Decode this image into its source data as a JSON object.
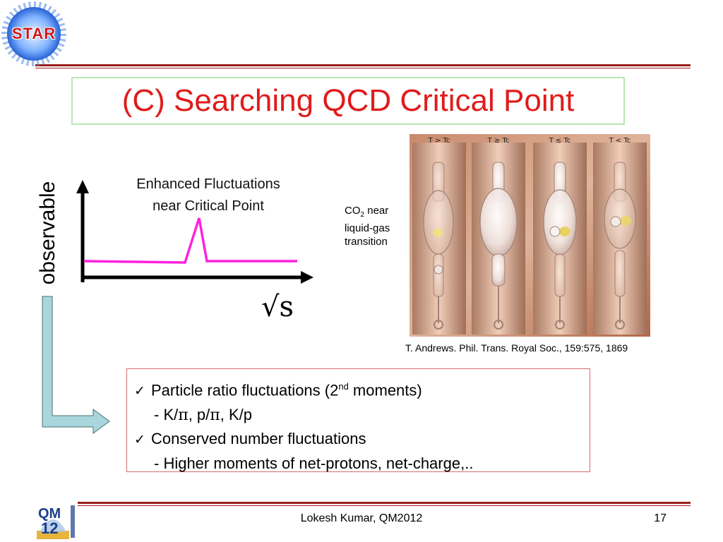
{
  "header": {
    "logo_text": "STAR",
    "title": "(C) Searching QCD Critical Point"
  },
  "plot": {
    "annotation_line1": "Enhanced Fluctuations",
    "annotation_line2": "near Critical Point",
    "ylabel": "observable",
    "xlabel": "√s",
    "colors": {
      "axis": "#000000",
      "curve": "#ff22dd",
      "bracket": "#a9d6dc"
    }
  },
  "photo": {
    "panel_labels": [
      "T > Tc",
      "T ≳ Tc",
      "T ≲ Tc",
      "T < Tc"
    ],
    "label_co2": "CO",
    "label_co2_sub": "2",
    "label_near": " near",
    "label_liquid_gas": "liquid-gas",
    "label_transition": "transition",
    "caption": "T. Andrews. Phil. Trans. Royal Soc., 159:575, 1869"
  },
  "bullets": {
    "b1_pre": "Particle ratio fluctuations (2",
    "b1_sup": "nd",
    "b1_post": " moments)",
    "b1_sub_k": "- K/",
    "b1_sub_pi": "π",
    "b1_sub_mid": ", p/",
    "b1_sub_pi2": "π",
    "b1_sub_end": ", K/p",
    "b2": "Conserved number fluctuations",
    "b2_sub": "- Higher moments of net-protons, net-charge,.."
  },
  "footer": {
    "logo_text_top": "QM",
    "logo_text_bottom": "12",
    "center": "Lokesh Kumar, QM2012",
    "page": "17"
  }
}
